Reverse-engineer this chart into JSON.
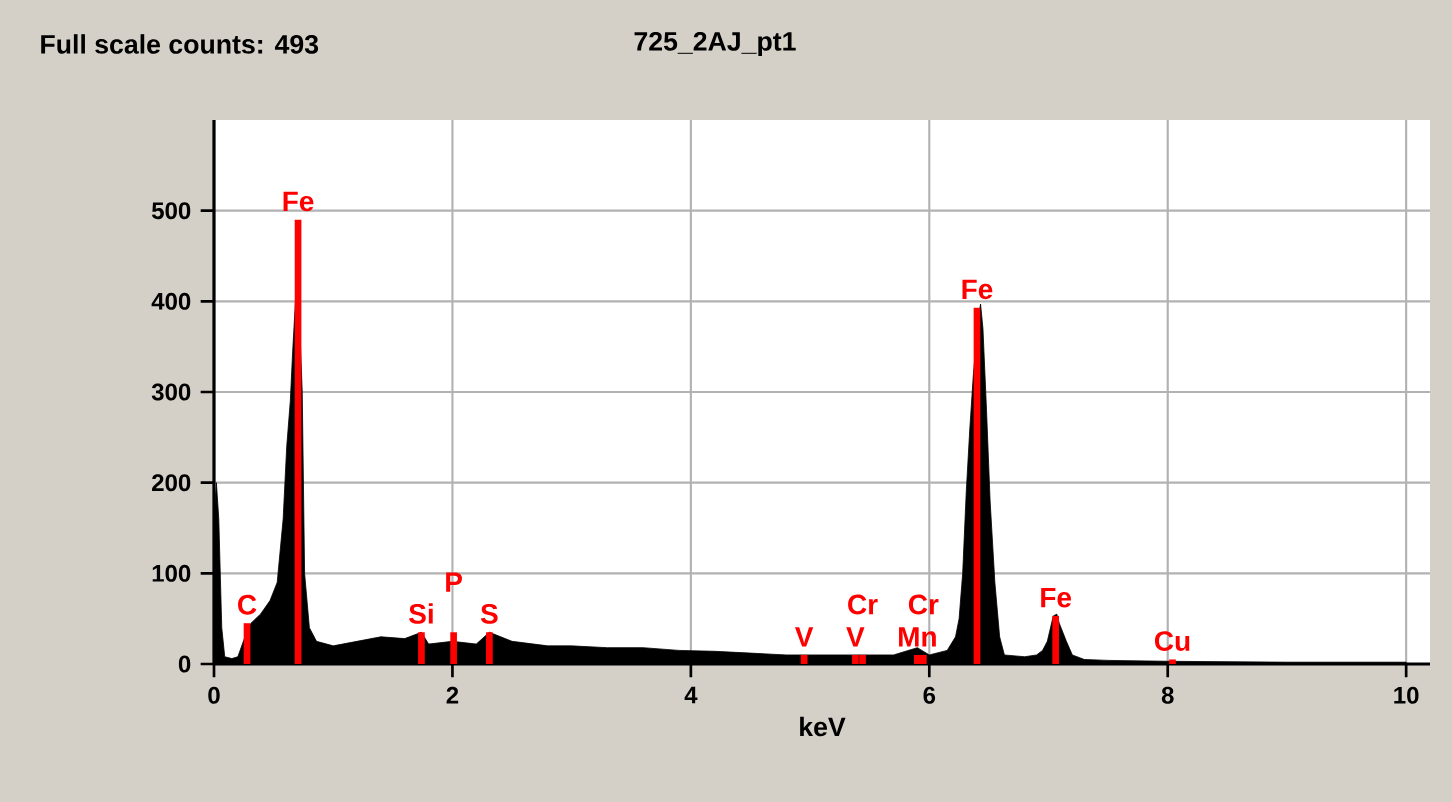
{
  "chart_data": {
    "type": "area",
    "title": "Full scale counts: 493",
    "subtitle": "725_2AJ_pt1",
    "xlabel": "keV",
    "x": [
      0.0,
      0.02,
      0.04,
      0.065,
      0.09,
      0.15,
      0.2,
      0.26,
      0.31,
      0.39,
      0.47,
      0.53,
      0.58,
      0.61,
      0.64,
      0.66,
      0.7,
      0.74,
      0.76,
      0.8,
      0.86,
      1.0,
      1.2,
      1.4,
      1.6,
      1.74,
      1.8,
      2.0,
      2.2,
      2.31,
      2.5,
      2.8,
      3.0,
      3.3,
      3.6,
      3.9,
      4.2,
      4.5,
      4.8,
      5.1,
      5.4,
      5.7,
      5.9,
      6.0,
      6.15,
      6.22,
      6.25,
      6.28,
      6.31,
      6.34,
      6.37,
      6.41,
      6.43,
      6.45,
      6.48,
      6.51,
      6.55,
      6.59,
      6.63,
      6.8,
      6.9,
      6.95,
      6.99,
      7.04,
      7.07,
      7.09,
      7.15,
      7.2,
      7.3,
      7.5,
      8.0,
      9.0,
      10.0
    ],
    "series": [
      {
        "color": "#000000",
        "values": [
          160,
          200,
          160,
          40,
          8,
          6,
          8,
          30,
          45,
          55,
          70,
          90,
          160,
          240,
          290,
          345,
          440,
          300,
          100,
          40,
          25,
          20,
          25,
          30,
          28,
          35,
          22,
          25,
          22,
          35,
          25,
          20,
          20,
          18,
          18,
          15,
          14,
          12,
          10,
          10,
          10,
          10,
          18,
          10,
          15,
          30,
          50,
          100,
          190,
          260,
          320,
          380,
          397,
          370,
          280,
          180,
          90,
          30,
          10,
          8,
          10,
          15,
          25,
          53,
          55,
          45,
          25,
          10,
          5,
          4,
          3,
          2,
          2
        ]
      },
      {
        "type": "bar",
        "color": "#ff0000",
        "x": [
          0.277,
          0.705,
          1.74,
          2.01,
          2.31,
          4.95,
          5.38,
          5.44,
          5.9,
          5.95,
          6.4,
          7.06,
          8.04
        ],
        "values": [
          45,
          490,
          35,
          35,
          35,
          10,
          10,
          10,
          10,
          10,
          393,
          53,
          5
        ],
        "value_labels": [
          "C",
          "Fe",
          "Si",
          "P",
          "S",
          "V",
          "V",
          "Cr",
          "Mn",
          "Cr",
          "Fe",
          "Fe",
          "Cu"
        ]
      }
    ],
    "xlim": [
      0,
      10.2
    ],
    "ylim": [
      0,
      600
    ],
    "xticks": [
      0,
      2,
      4,
      6,
      8,
      10
    ],
    "yticks": [
      0,
      100,
      200,
      300,
      400,
      500
    ],
    "grid": true
  }
}
